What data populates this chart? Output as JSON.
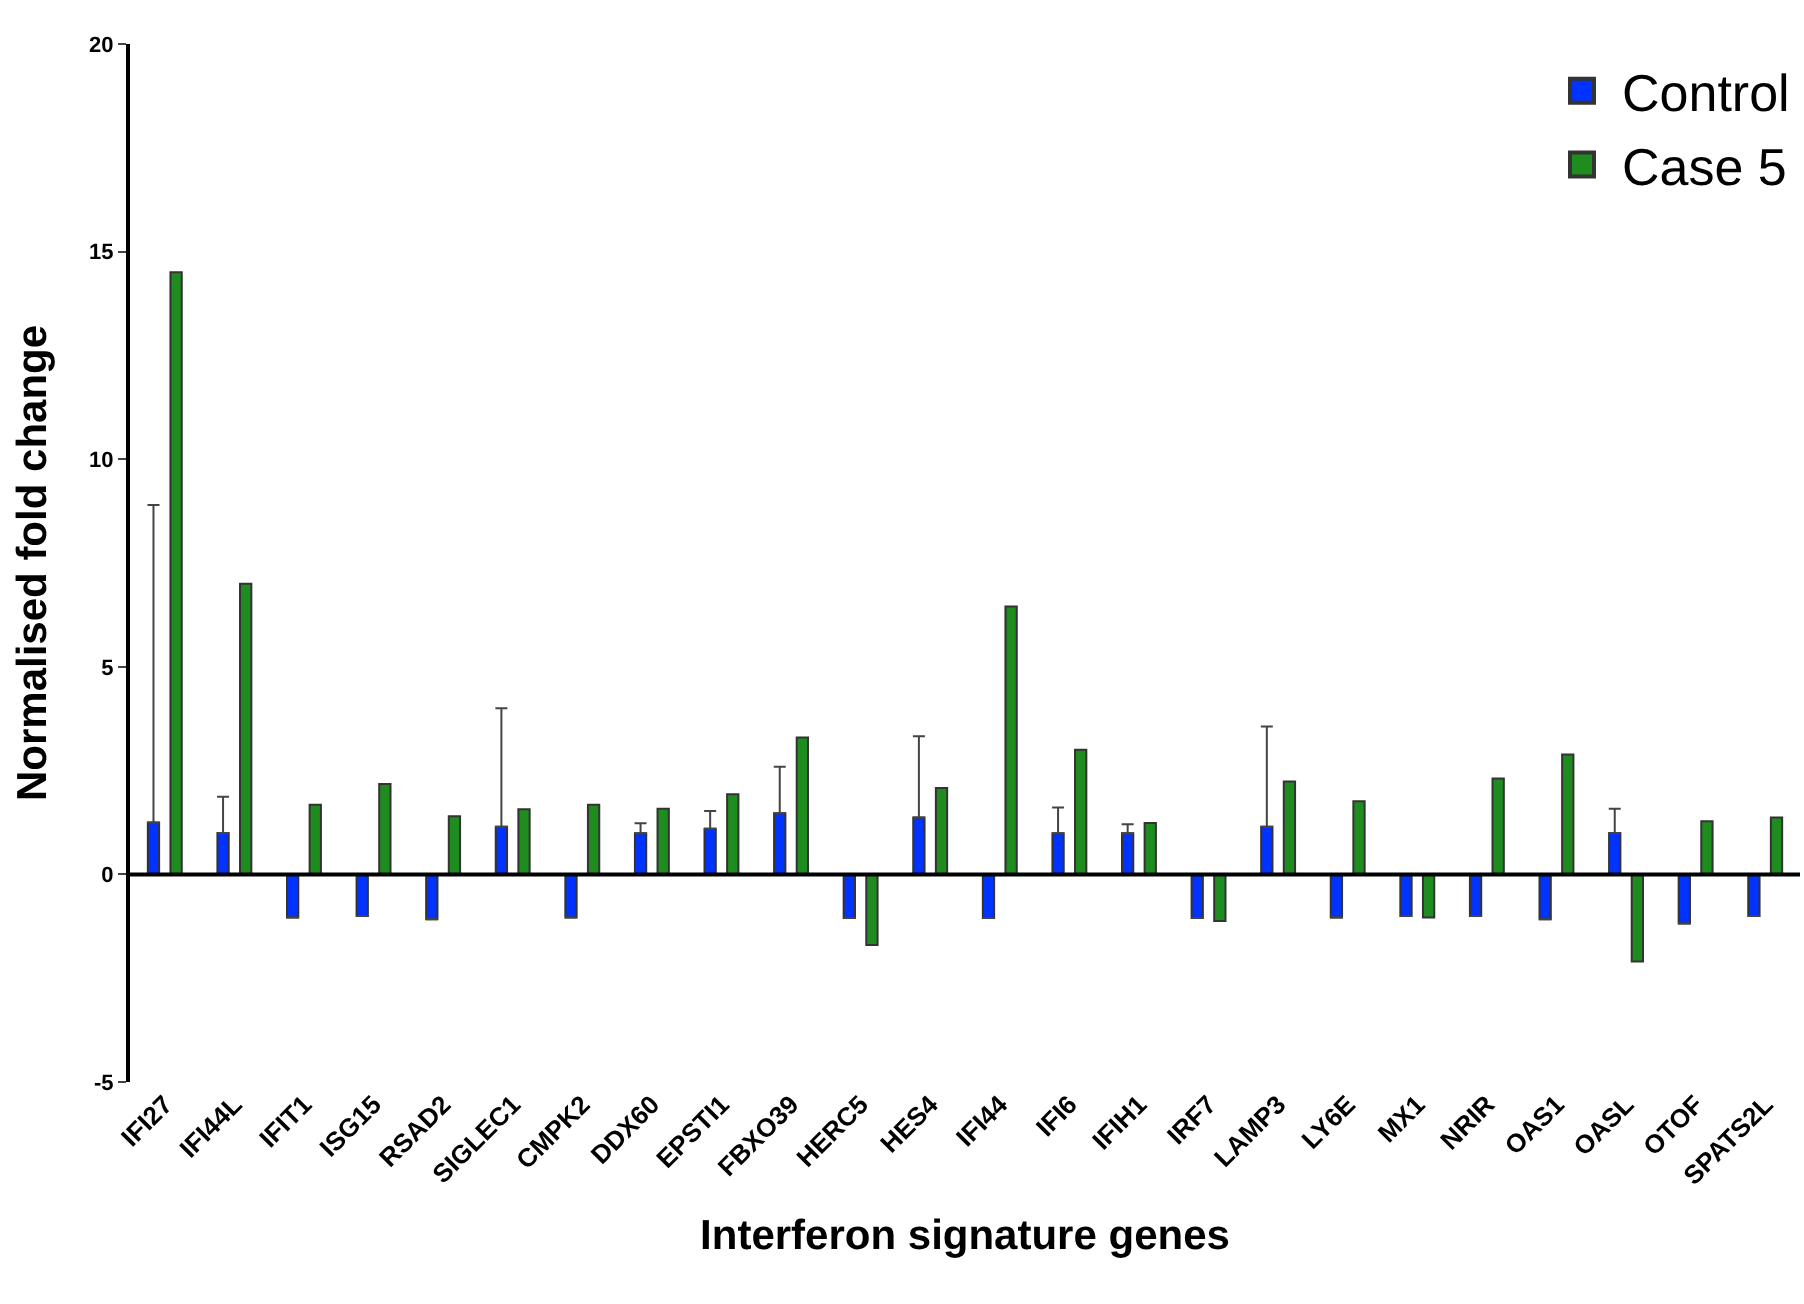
{
  "chart_data": {
    "type": "bar",
    "xlabel": "Interferon signature genes",
    "ylabel": "Normalised fold change",
    "categories": [
      "IFI27",
      "IFI44L",
      "IFIT1",
      "ISG15",
      "RSAD2",
      "SIGLEC1",
      "CMPK2",
      "DDX60",
      "EPSTI1",
      "FBXO39",
      "HERC5",
      "HES4",
      "IFI44",
      "IFI6",
      "IFIH1",
      "IRF7",
      "LAMP3",
      "LY6E",
      "MX1",
      "NRIR",
      "OAS1",
      "OASL",
      "OTOF",
      "SPATS2L"
    ],
    "series": [
      {
        "name": "Control",
        "color": "#0033ff",
        "values": [
          1.25,
          1.0,
          -1.04,
          -1.0,
          -1.08,
          1.15,
          -1.04,
          0.99,
          1.1,
          1.47,
          -1.05,
          1.37,
          -1.05,
          0.99,
          0.99,
          -1.05,
          1.15,
          -1.04,
          -1.0,
          -1.0,
          -1.08,
          1.0,
          -1.18,
          -1.0
        ],
        "errors": [
          [
            1.25,
            8.9
          ],
          [
            1.0,
            1.87
          ],
          null,
          null,
          null,
          [
            1.15,
            4.0
          ],
          null,
          [
            0.99,
            1.23
          ],
          [
            1.1,
            1.53
          ],
          [
            1.47,
            2.59
          ],
          null,
          [
            1.37,
            3.33
          ],
          null,
          [
            0.99,
            1.61
          ],
          [
            0.99,
            1.21
          ],
          null,
          [
            1.15,
            3.56
          ],
          null,
          null,
          null,
          null,
          [
            1.0,
            1.58
          ],
          null,
          null
        ]
      },
      {
        "name": "Case 5",
        "color": "#1e8c1e",
        "values": [
          14.5,
          7.0,
          1.68,
          2.18,
          1.4,
          1.57,
          1.68,
          1.58,
          1.93,
          3.3,
          -1.7,
          2.08,
          6.45,
          3.0,
          1.24,
          -1.12,
          2.24,
          1.76,
          -1.04,
          2.31,
          2.89,
          -2.1,
          1.28,
          1.37
        ]
      }
    ],
    "ylim": [
      -5,
      20
    ],
    "yticks": [
      -5,
      0,
      5,
      10,
      15,
      20
    ],
    "legend": "top right",
    "grid": false,
    "ref_lines": [
      {
        "axis": "y",
        "value": 0,
        "color": "#000000"
      }
    ]
  }
}
